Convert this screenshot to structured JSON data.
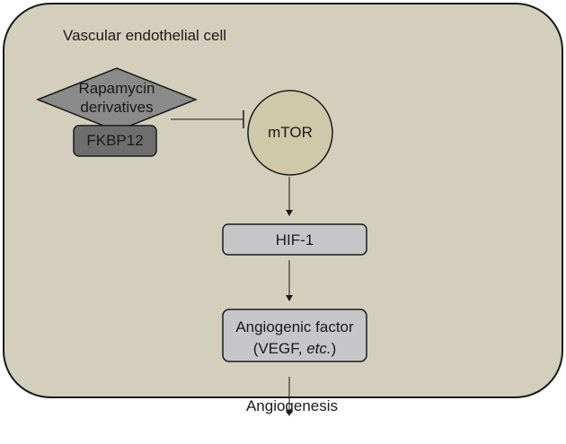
{
  "cell": {
    "title": "Vascular endothelial cell"
  },
  "inhibitor": {
    "drug_line1": "Rapamycin",
    "drug_line2": "derivatives",
    "binding_protein": "FKBP12"
  },
  "nodes": {
    "mtor": "mTOR",
    "hif": "HIF-1",
    "factor_line1": "Angiogenic factor",
    "factor_line2_prefix": "(VEGF, ",
    "factor_line2_italic": "etc.",
    "factor_line2_suffix": ")",
    "outcome": "Angiogenesis"
  },
  "colors": {
    "cell_fill": "#d4cfbd",
    "mtor_fill": "#cfc9aa",
    "drug_fill": "#8a8a8a",
    "fkbp_fill": "#6e6e6e",
    "box_fill": "#c6c6c8",
    "stroke": "#1a1a1a"
  }
}
